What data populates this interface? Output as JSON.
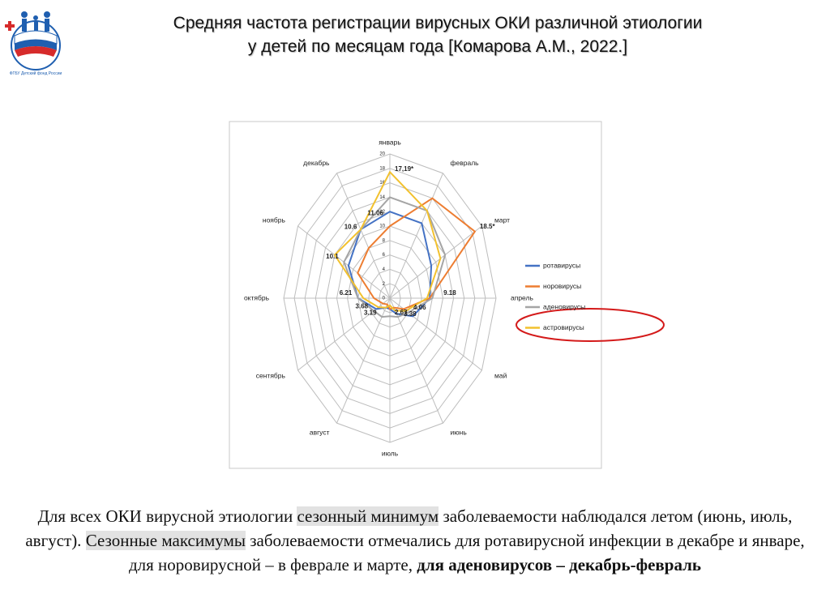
{
  "slide": {
    "title_line1": "Средняя частота регистрации вирусных ОКИ различной этиологии",
    "title_line2": "у детей по месяцам года",
    "title_ref": "[Комарова А.М., 2022.]",
    "logo_caption": "ФГБУ Детский фонд России",
    "paragraph": [
      {
        "text": "Для всех ОКИ вирусной этиологии ",
        "style": "plain"
      },
      {
        "text": "сезонный минимум",
        "style": "highlight"
      },
      {
        "text": " заболеваемости наблюдался летом (июнь, июль, август). ",
        "style": "plain"
      },
      {
        "text": "Сезонные максимумы",
        "style": "highlight"
      },
      {
        "text": " заболеваемости отмечались для ротавирусной инфекции в декабре и январе, для норовирусной – в феврале и марте, ",
        "style": "plain"
      },
      {
        "text": "для аденовирусов – декабрь-февраль",
        "style": "bold"
      }
    ]
  },
  "chart_data": {
    "type": "radar",
    "categories": [
      "январь",
      "февраль",
      "март",
      "апрель",
      "май",
      "июнь",
      "июль",
      "август",
      "сентябрь",
      "октябрь",
      "ноябрь",
      "декабрь"
    ],
    "series": [
      {
        "name": "ротавирусы",
        "color": "#4472c4",
        "values": [
          12,
          12,
          9,
          7.5,
          5,
          2.5,
          1.5,
          1.5,
          3,
          6,
          9,
          11
        ]
      },
      {
        "name": "норовирусы",
        "color": "#ed7d31",
        "values": [
          10,
          16,
          18.5,
          7.5,
          3,
          1.5,
          1.5,
          1,
          1.5,
          3,
          7,
          8
        ]
      },
      {
        "name": "аденовирусы",
        "color": "#a5a5a5",
        "values": [
          14,
          14,
          12,
          8,
          4,
          3,
          2.5,
          3,
          3.5,
          6,
          10,
          11
        ]
      },
      {
        "name": "астровирусы",
        "color": "#f2c12e",
        "values": [
          17.5,
          14,
          11,
          7,
          3.5,
          2,
          1,
          1.5,
          2.5,
          5,
          12,
          11
        ]
      }
    ],
    "ylim": [
      0,
      20
    ],
    "yticks": [
      0,
      2,
      4,
      6,
      8,
      10,
      12,
      14,
      16,
      18,
      20
    ],
    "grid": true,
    "legend": "right",
    "annotations": [
      {
        "text": "17,19*",
        "value": 17.19,
        "category": "январь"
      },
      {
        "text": "11.06",
        "value": 11.06,
        "category": "январь"
      },
      {
        "text": "18.5*",
        "value": 18.5,
        "category": "март"
      },
      {
        "text": "9.18",
        "value": 9.18,
        "category": "апрель"
      },
      {
        "text": "4.06",
        "value": 4.06,
        "category": "май"
      },
      {
        "text": "3.38",
        "value": 3.38,
        "category": "июнь"
      },
      {
        "text": "2.67",
        "value": 2.67,
        "category": "июль"
      },
      {
        "text": "3.19",
        "value": 3.19,
        "category": "август"
      },
      {
        "text": "3.68",
        "value": 3.68,
        "category": "сентябрь"
      },
      {
        "text": "6.21",
        "value": 6.21,
        "category": "октябрь"
      },
      {
        "text": "10.1",
        "value": 10.1,
        "category": "ноябрь"
      },
      {
        "text": "10.6",
        "value": 10.6,
        "category": "декабрь"
      }
    ]
  }
}
